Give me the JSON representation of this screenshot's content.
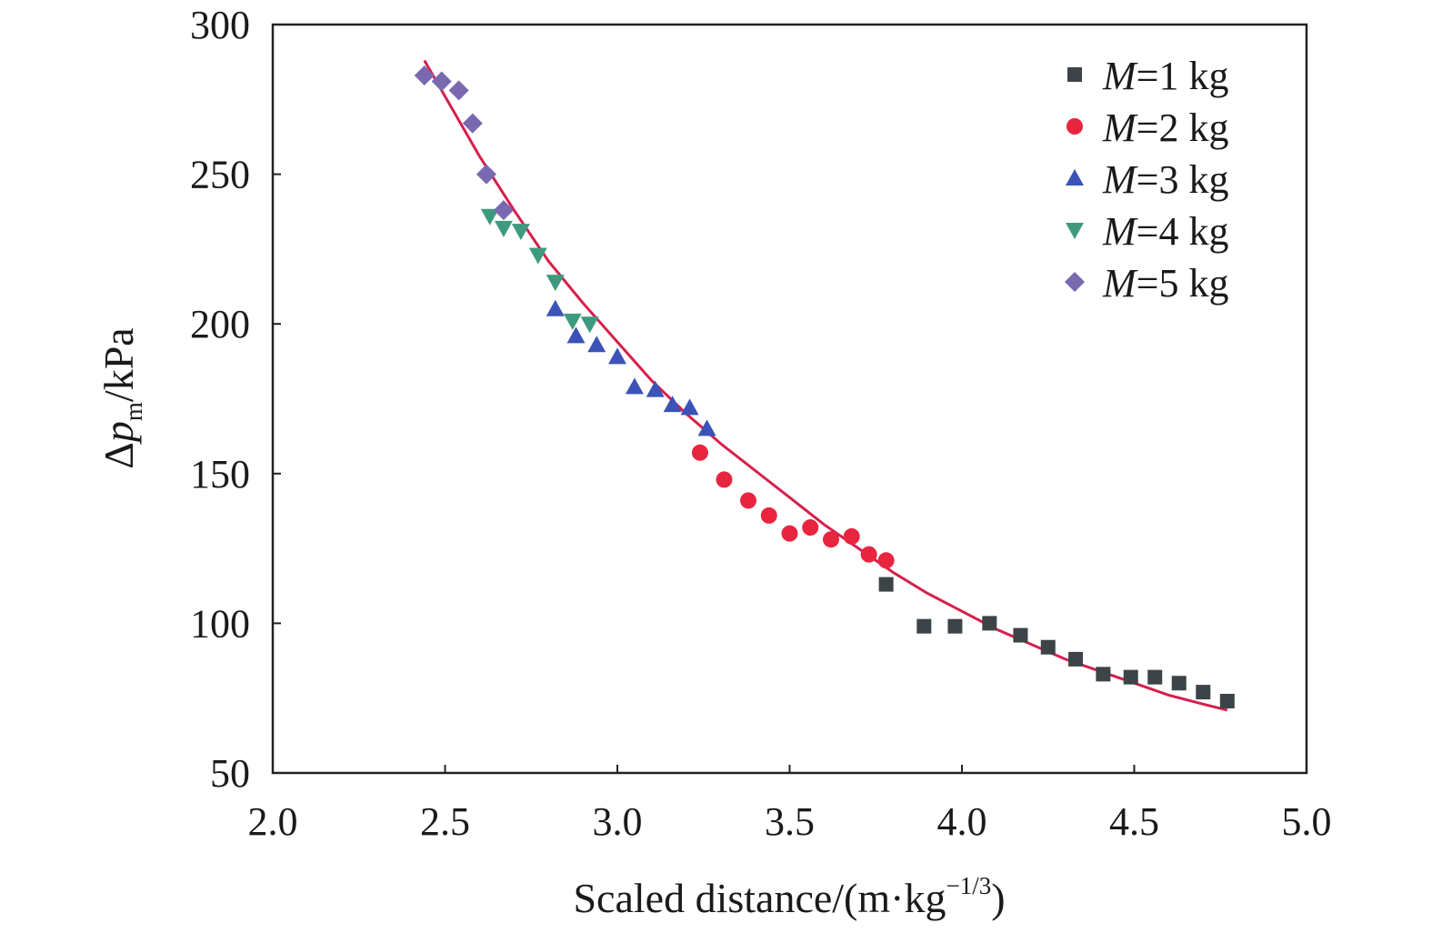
{
  "chart_data": {
    "type": "scatter",
    "xlabel": "Scaled distance/(m·kg",
    "xlabel_sup": "−1/3",
    "xlabel_tail": ")",
    "ylabel_prefix": "Δ",
    "ylabel_var": "p",
    "ylabel_sub": "m",
    "ylabel_suffix": "/kPa",
    "xlim": [
      2.0,
      5.0
    ],
    "ylim": [
      50,
      300
    ],
    "xticks": [
      "2.0",
      "2.5",
      "3.0",
      "3.5",
      "4.0",
      "4.5",
      "5.0"
    ],
    "yticks": [
      "50",
      "100",
      "150",
      "200",
      "250",
      "300"
    ],
    "grid": false,
    "legend_position": "top-right",
    "series": [
      {
        "name": "M=1 kg",
        "name_var": "M",
        "name_rest": "=1 kg",
        "marker": "square",
        "color": "#3d4447",
        "points": [
          [
            3.78,
            113
          ],
          [
            3.89,
            99
          ],
          [
            3.98,
            99
          ],
          [
            4.08,
            100
          ],
          [
            4.17,
            96
          ],
          [
            4.25,
            92
          ],
          [
            4.33,
            88
          ],
          [
            4.41,
            83
          ],
          [
            4.49,
            82
          ],
          [
            4.56,
            82
          ],
          [
            4.63,
            80
          ],
          [
            4.7,
            77
          ],
          [
            4.77,
            74
          ]
        ]
      },
      {
        "name": "M=2 kg",
        "name_var": "M",
        "name_rest": "=2 kg",
        "marker": "circle",
        "color": "#e8253f",
        "points": [
          [
            3.24,
            157
          ],
          [
            3.31,
            148
          ],
          [
            3.38,
            141
          ],
          [
            3.44,
            136
          ],
          [
            3.5,
            130
          ],
          [
            3.56,
            132
          ],
          [
            3.62,
            128
          ],
          [
            3.68,
            129
          ],
          [
            3.73,
            123
          ],
          [
            3.78,
            121
          ]
        ]
      },
      {
        "name": "M=3 kg",
        "name_var": "M",
        "name_rest": "=3 kg",
        "marker": "triangle-up",
        "color": "#3b53b8",
        "points": [
          [
            2.82,
            205
          ],
          [
            2.88,
            196
          ],
          [
            2.94,
            193
          ],
          [
            3.0,
            189
          ],
          [
            3.05,
            179
          ],
          [
            3.11,
            178
          ],
          [
            3.16,
            173
          ],
          [
            3.21,
            172
          ],
          [
            3.26,
            165
          ]
        ]
      },
      {
        "name": "M=4 kg",
        "name_var": "M",
        "name_rest": "=4 kg",
        "marker": "triangle-down",
        "color": "#3e9a7e",
        "points": [
          [
            2.63,
            236
          ],
          [
            2.67,
            232
          ],
          [
            2.72,
            231
          ],
          [
            2.77,
            223
          ],
          [
            2.82,
            214
          ],
          [
            2.87,
            201
          ],
          [
            2.92,
            200
          ]
        ]
      },
      {
        "name": "M=5 kg",
        "name_var": "M",
        "name_rest": "=5 kg",
        "marker": "diamond",
        "color": "#7a68b0",
        "points": [
          [
            2.44,
            283
          ],
          [
            2.49,
            281
          ],
          [
            2.54,
            278
          ],
          [
            2.58,
            267
          ],
          [
            2.62,
            250
          ],
          [
            2.67,
            238
          ]
        ]
      }
    ],
    "fit_curve": {
      "color": "#d61f4c",
      "points": [
        [
          2.44,
          288
        ],
        [
          2.5,
          276
        ],
        [
          2.6,
          256
        ],
        [
          2.7,
          238
        ],
        [
          2.8,
          221
        ],
        [
          2.9,
          207
        ],
        [
          3.0,
          194
        ],
        [
          3.1,
          181
        ],
        [
          3.2,
          170
        ],
        [
          3.3,
          160
        ],
        [
          3.4,
          151
        ],
        [
          3.5,
          142
        ],
        [
          3.6,
          133
        ],
        [
          3.7,
          125
        ],
        [
          3.8,
          117
        ],
        [
          3.9,
          110
        ],
        [
          4.0,
          104
        ],
        [
          4.1,
          98
        ],
        [
          4.2,
          93
        ],
        [
          4.3,
          88
        ],
        [
          4.4,
          84
        ],
        [
          4.5,
          80
        ],
        [
          4.6,
          76
        ],
        [
          4.7,
          73
        ],
        [
          4.77,
          71
        ]
      ]
    }
  }
}
